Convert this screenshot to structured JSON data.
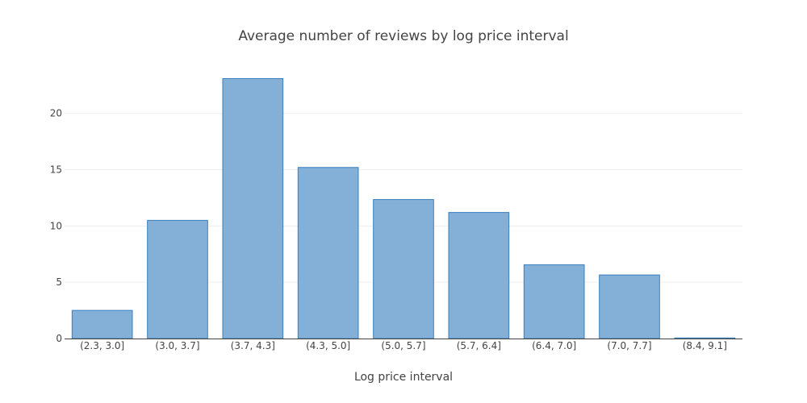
{
  "chart_data": {
    "type": "bar",
    "title": "Average number of reviews by log price interval",
    "xlabel": "Log price interval",
    "ylabel": "",
    "categories": [
      "(2.3, 3.0]",
      "(3.0, 3.7]",
      "(3.7, 4.3]",
      "(4.3, 5.0]",
      "(5.0, 5.7]",
      "(5.7, 6.4]",
      "(6.4, 7.0]",
      "(7.0, 7.7]",
      "(8.4, 9.1]"
    ],
    "values": [
      2.5,
      10.5,
      23.1,
      15.2,
      12.35,
      11.2,
      6.55,
      5.65,
      0.05
    ],
    "ylim": [
      0,
      24.35
    ],
    "yticks": [
      0,
      5,
      10,
      15,
      20
    ],
    "grid": true,
    "bar_fill": "#84b0d8",
    "bar_stroke": "#3a7fbd",
    "text_color": "#444444",
    "grid_color": "#eeeeee"
  }
}
